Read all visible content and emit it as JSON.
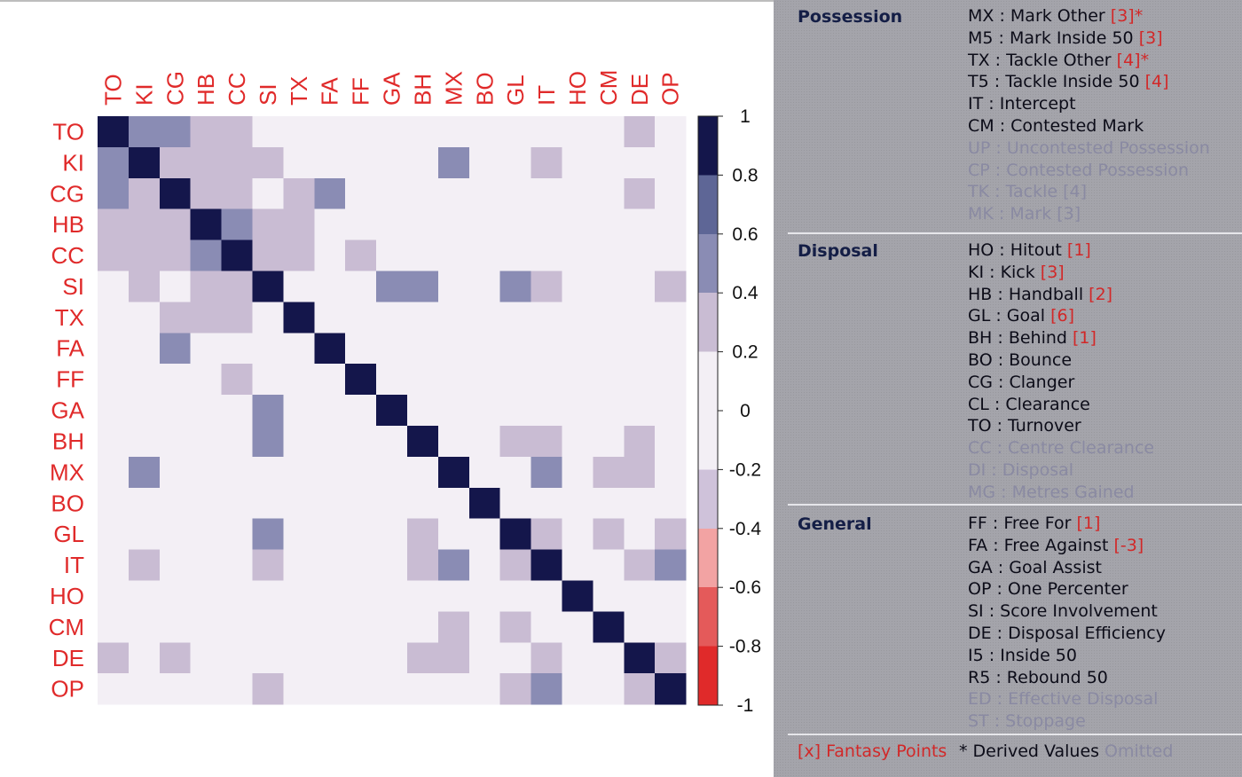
{
  "chart_data": {
    "type": "heatmap",
    "title": "",
    "labels": [
      "TO",
      "KI",
      "CG",
      "HB",
      "CC",
      "SI",
      "TX",
      "FA",
      "FF",
      "GA",
      "BH",
      "MX",
      "BO",
      "GL",
      "IT",
      "HO",
      "CM",
      "DE",
      "OP"
    ],
    "matrix": [
      [
        1,
        0.5,
        0.5,
        0.3,
        0.3,
        0,
        0,
        0,
        0,
        0,
        0,
        0,
        0,
        0,
        0,
        0,
        0,
        0.3,
        0
      ],
      [
        0.5,
        1,
        0.3,
        0.3,
        0.3,
        0.3,
        0,
        0,
        0,
        0,
        0,
        0.5,
        0,
        0,
        0.3,
        0,
        0,
        0,
        0
      ],
      [
        0.5,
        0.3,
        1,
        0.3,
        0.3,
        0,
        0.3,
        0.5,
        0,
        0,
        0,
        0,
        0,
        0,
        0,
        0,
        0,
        0.3,
        0
      ],
      [
        0.3,
        0.3,
        0.3,
        1,
        0.5,
        0.3,
        0.3,
        0,
        0,
        0,
        0,
        0,
        0,
        0,
        0,
        0,
        0,
        0,
        0
      ],
      [
        0.3,
        0.3,
        0.3,
        0.5,
        1,
        0.3,
        0.3,
        0,
        0.3,
        0,
        0,
        0,
        0,
        0,
        0,
        0,
        0,
        0,
        0
      ],
      [
        0,
        0.3,
        0,
        0.3,
        0.3,
        1,
        0,
        0,
        0,
        0.5,
        0.5,
        0,
        0,
        0.5,
        0.3,
        0,
        0,
        0,
        0.3
      ],
      [
        0,
        0,
        0.3,
        0.3,
        0.3,
        0,
        1,
        0,
        0,
        0,
        0,
        0,
        0,
        0,
        0,
        0,
        0,
        0,
        0
      ],
      [
        0,
        0,
        0.5,
        0,
        0,
        0,
        0,
        1,
        0,
        0,
        0,
        0,
        0,
        0,
        0,
        0,
        0,
        0,
        0
      ],
      [
        0,
        0,
        0,
        0,
        0.3,
        0,
        0,
        0,
        1,
        0,
        0,
        0,
        0,
        0,
        0,
        0,
        0,
        0,
        0
      ],
      [
        0,
        0,
        0,
        0,
        0,
        0.5,
        0,
        0,
        0,
        1,
        0,
        0,
        0,
        0,
        0,
        0,
        0,
        0,
        0
      ],
      [
        0,
        0,
        0,
        0,
        0,
        0.5,
        0,
        0,
        0,
        0,
        1,
        0,
        0,
        0.3,
        0.3,
        0,
        0,
        0.3,
        0
      ],
      [
        0,
        0.5,
        0,
        0,
        0,
        0,
        0,
        0,
        0,
        0,
        0,
        1,
        0,
        0,
        0.5,
        0,
        0.3,
        0.3,
        0
      ],
      [
        0,
        0,
        0,
        0,
        0,
        0,
        0,
        0,
        0,
        0,
        0,
        0,
        1,
        0,
        0,
        0,
        0,
        0,
        0
      ],
      [
        0,
        0,
        0,
        0,
        0,
        0.5,
        0,
        0,
        0,
        0,
        0.3,
        0,
        0,
        1,
        0.3,
        0,
        0.3,
        0,
        0.3
      ],
      [
        0,
        0.3,
        0,
        0,
        0,
        0.3,
        0,
        0,
        0,
        0,
        0.3,
        0.5,
        0,
        0.3,
        1,
        0,
        0,
        0.3,
        0.5
      ],
      [
        0,
        0,
        0,
        0,
        0,
        0,
        0,
        0,
        0,
        0,
        0,
        0,
        0,
        0,
        0,
        1,
        0,
        0,
        0
      ],
      [
        0,
        0,
        0,
        0,
        0,
        0,
        0,
        0,
        0,
        0,
        0,
        0.3,
        0,
        0.3,
        0,
        0,
        1,
        0,
        0
      ],
      [
        0.3,
        0,
        0.3,
        0,
        0,
        0,
        0,
        0,
        0,
        0,
        0.3,
        0.3,
        0,
        0,
        0.3,
        0,
        0,
        1,
        0.3
      ],
      [
        0,
        0,
        0,
        0,
        0,
        0.3,
        0,
        0,
        0,
        0,
        0,
        0,
        0,
        0.3,
        0.5,
        0,
        0,
        0.3,
        1
      ]
    ],
    "color_scale": {
      "range": [
        -1,
        1
      ],
      "ticks": [
        "1",
        "0.8",
        "0.6",
        "0.4",
        "0.2",
        "0",
        "-0.2",
        "-0.4",
        "-0.6",
        "-0.8",
        "-1"
      ],
      "bins": [
        {
          "from": 0.8,
          "to": 1.0,
          "color": "#14164b"
        },
        {
          "from": 0.6,
          "to": 0.8,
          "color": "#5e6696"
        },
        {
          "from": 0.4,
          "to": 0.6,
          "color": "#8a8cb4"
        },
        {
          "from": 0.2,
          "to": 0.4,
          "color": "#c9bcd3"
        },
        {
          "from": 0.0,
          "to": 0.2,
          "color": "#f3eff5"
        },
        {
          "from": -0.2,
          "to": 0.0,
          "color": "#f3eff5"
        },
        {
          "from": -0.4,
          "to": -0.2,
          "color": "#cfc2da"
        },
        {
          "from": -0.6,
          "to": -0.4,
          "color": "#f2a3a3"
        },
        {
          "from": -0.8,
          "to": -0.6,
          "color": "#e45a5a"
        },
        {
          "from": -1.0,
          "to": -0.8,
          "color": "#e02a2a"
        }
      ]
    },
    "grid": false,
    "legend": "right colorbar"
  },
  "colors": {
    "label_red": "#e02a2a",
    "points_red": "#d22828",
    "omitted": "#8a8aa2",
    "panel_bg": "#a4a4ab"
  },
  "legend_panel": {
    "sections": [
      {
        "title": "Possession",
        "items": [
          {
            "code": "MX",
            "desc": "Mark Other",
            "points": "[3]",
            "derived": true,
            "omitted": false
          },
          {
            "code": "M5",
            "desc": "Mark Inside 50",
            "points": "[3]",
            "derived": false,
            "omitted": false
          },
          {
            "code": "TX",
            "desc": "Tackle Other",
            "points": "[4]",
            "derived": true,
            "omitted": false
          },
          {
            "code": "T5",
            "desc": "Tackle Inside 50",
            "points": "[4]",
            "derived": false,
            "omitted": false
          },
          {
            "code": "IT",
            "desc": "Intercept",
            "points": "",
            "derived": false,
            "omitted": false
          },
          {
            "code": "CM",
            "desc": "Contested Mark",
            "points": "",
            "derived": false,
            "omitted": false
          },
          {
            "code": "UP",
            "desc": "Uncontested Possession",
            "points": "",
            "derived": false,
            "omitted": true
          },
          {
            "code": "CP",
            "desc": "Contested Possession",
            "points": "",
            "derived": false,
            "omitted": true
          },
          {
            "code": "TK",
            "desc": "Tackle",
            "points": "[4]",
            "derived": false,
            "omitted": true
          },
          {
            "code": "MK",
            "desc": "Mark",
            "points": "[3]",
            "derived": false,
            "omitted": true
          }
        ]
      },
      {
        "title": "Disposal",
        "items": [
          {
            "code": "HO",
            "desc": "Hitout",
            "points": "[1]",
            "derived": false,
            "omitted": false
          },
          {
            "code": "KI",
            "desc": "Kick",
            "points": "[3]",
            "derived": false,
            "omitted": false
          },
          {
            "code": "HB",
            "desc": "Handball",
            "points": "[2]",
            "derived": false,
            "omitted": false
          },
          {
            "code": "GL",
            "desc": "Goal",
            "points": "[6]",
            "derived": false,
            "omitted": false
          },
          {
            "code": "BH",
            "desc": "Behind",
            "points": "[1]",
            "derived": false,
            "omitted": false
          },
          {
            "code": "BO",
            "desc": "Bounce",
            "points": "",
            "derived": false,
            "omitted": false
          },
          {
            "code": "CG",
            "desc": "Clanger",
            "points": "",
            "derived": false,
            "omitted": false
          },
          {
            "code": "CL",
            "desc": "Clearance",
            "points": "",
            "derived": false,
            "omitted": false
          },
          {
            "code": "TO",
            "desc": "Turnover",
            "points": "",
            "derived": false,
            "omitted": false
          },
          {
            "code": "CC",
            "desc": "Centre Clearance",
            "points": "",
            "derived": false,
            "omitted": true
          },
          {
            "code": "DI",
            "desc": "Disposal",
            "points": "",
            "derived": false,
            "omitted": true
          },
          {
            "code": "MG",
            "desc": "Metres Gained",
            "points": "",
            "derived": false,
            "omitted": true
          }
        ]
      },
      {
        "title": "General",
        "items": [
          {
            "code": "FF",
            "desc": "Free For",
            "points": "[1]",
            "derived": false,
            "omitted": false
          },
          {
            "code": "FA",
            "desc": "Free Against",
            "points": "[-3]",
            "derived": false,
            "omitted": false
          },
          {
            "code": "GA",
            "desc": "Goal Assist",
            "points": "",
            "derived": false,
            "omitted": false
          },
          {
            "code": "OP",
            "desc": "One Percenter",
            "points": "",
            "derived": false,
            "omitted": false
          },
          {
            "code": "SI",
            "desc": "Score Involvement",
            "points": "",
            "derived": false,
            "omitted": false
          },
          {
            "code": "DE",
            "desc": "Disposal Efficiency",
            "points": "",
            "derived": false,
            "omitted": false
          },
          {
            "code": "I5",
            "desc": "Inside 50",
            "points": "",
            "derived": false,
            "omitted": false
          },
          {
            "code": "R5",
            "desc": "Rebound 50",
            "points": "",
            "derived": false,
            "omitted": false
          },
          {
            "code": "ED",
            "desc": "Effective Disposal",
            "points": "",
            "derived": false,
            "omitted": true
          },
          {
            "code": "ST",
            "desc": "Stoppage",
            "points": "",
            "derived": false,
            "omitted": true
          }
        ]
      }
    ],
    "footer": {
      "fantasy": "[x] Fantasy Points",
      "derived": "* Derived Values",
      "omitted": "Omitted"
    }
  }
}
